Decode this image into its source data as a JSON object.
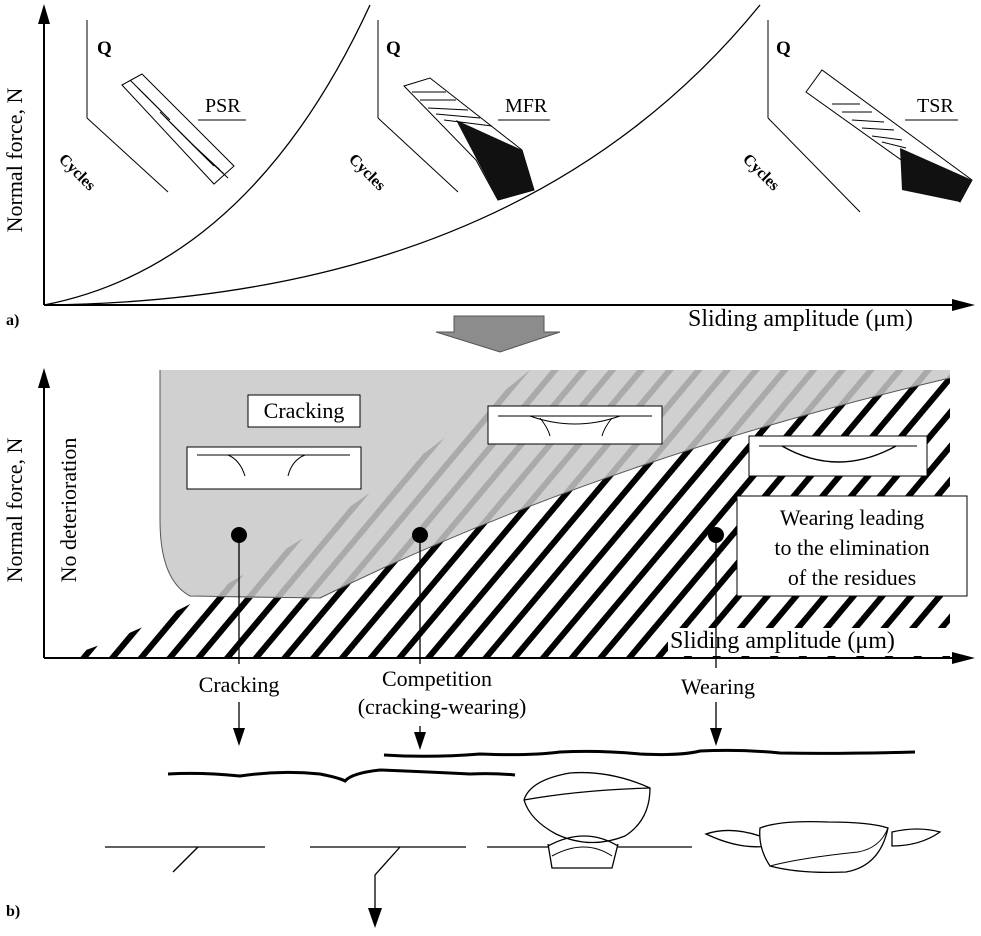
{
  "panel_a": {
    "label": "a)",
    "y_axis": "Normal force, N",
    "x_axis": "Sliding amplitude (μm)",
    "insets": [
      {
        "q": "Q",
        "cycles": "Cycles",
        "regime": "PSR"
      },
      {
        "q": "Q",
        "cycles": "Cycles",
        "regime": "MFR"
      },
      {
        "q": "Q",
        "cycles": "Cycles",
        "regime": "TSR"
      }
    ]
  },
  "panel_b": {
    "label": "b)",
    "y_axis": "Normal force, N",
    "no_deterioration": "No deterioration",
    "x_axis": "Sliding amplitude (μm)",
    "cracking_region": "Cracking",
    "wearing_box": [
      "Wearing leading",
      "to the elimination",
      "of the residues"
    ],
    "markers": [
      {
        "label": [
          "Cracking"
        ]
      },
      {
        "label": [
          "Competition",
          "(cracking-wearing)"
        ]
      },
      {
        "label": [
          "Wearing"
        ]
      }
    ]
  },
  "colors": {
    "cracking_region": "#c8c8c8",
    "ink": "#000000",
    "transition_arrow": "#8c8c8c"
  }
}
